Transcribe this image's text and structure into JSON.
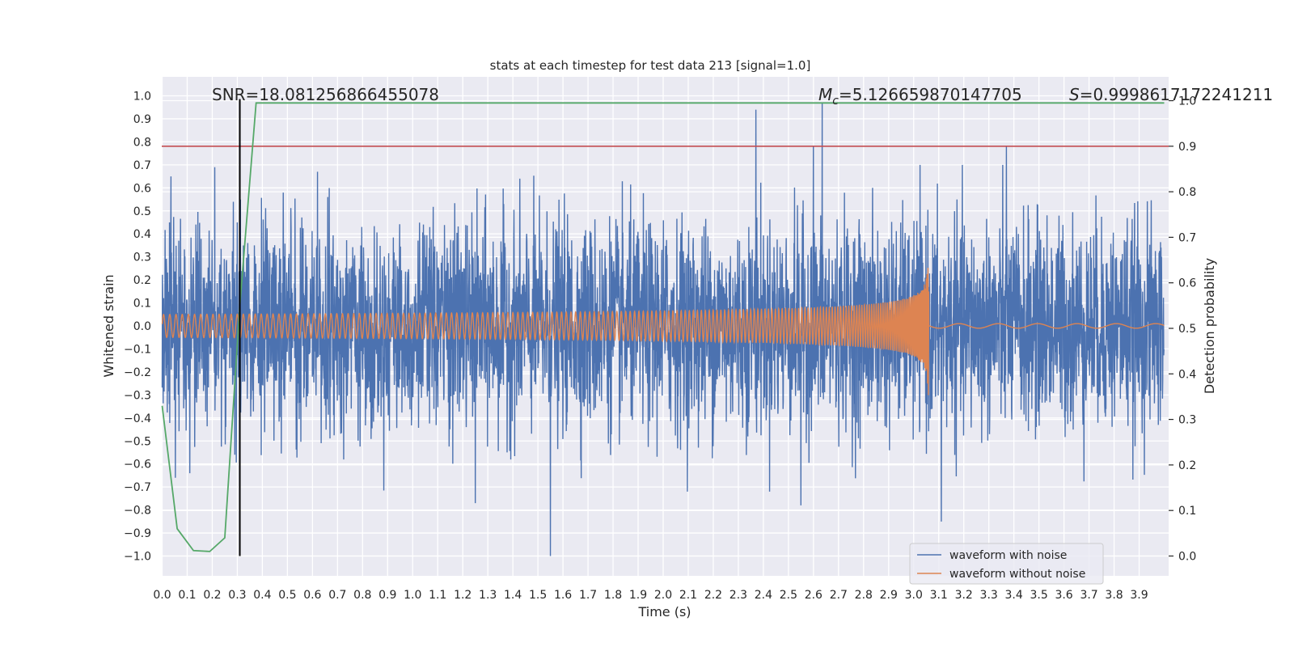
{
  "chart_data": {
    "type": "line",
    "title": "stats at each timestep for test data 213 [signal=1.0]",
    "xlabel": "Time (s)",
    "ylabel": "Whitened strain",
    "y2label": "Detection probability",
    "xlim": [
      0.0,
      4.0
    ],
    "ylim": [
      -1.1,
      1.1
    ],
    "y2lim": [
      -0.05,
      1.05
    ],
    "x_ticks": [
      "0.0",
      "0.1",
      "0.2",
      "0.3",
      "0.4",
      "0.5",
      "0.6",
      "0.7",
      "0.8",
      "0.9",
      "1.0",
      "1.1",
      "1.2",
      "1.3",
      "1.4",
      "1.5",
      "1.6",
      "1.7",
      "1.8",
      "1.9",
      "2.0",
      "2.1",
      "2.2",
      "2.3",
      "2.4",
      "2.5",
      "2.6",
      "2.7",
      "2.8",
      "2.9",
      "3.0",
      "3.1",
      "3.2",
      "3.3",
      "3.4",
      "3.5",
      "3.6",
      "3.7",
      "3.8",
      "3.9"
    ],
    "y_ticks": [
      "1.0",
      "0.9",
      "0.8",
      "0.7",
      "0.6",
      "0.5",
      "0.4",
      "0.3",
      "0.2",
      "0.1",
      "0.0",
      "−0.1",
      "−0.2",
      "−0.3",
      "−0.4",
      "−0.5",
      "−0.6",
      "−0.7",
      "−0.8",
      "−0.9",
      "−1.0"
    ],
    "y2_ticks": [
      "1.0",
      "0.9",
      "0.8",
      "0.7",
      "0.6",
      "0.5",
      "0.4",
      "0.3",
      "0.2",
      "0.1",
      "0.0"
    ],
    "grid": true,
    "annotations": {
      "snr": "SNR=18.081256866455078",
      "mc_symbol": "M",
      "mc_sub": "c",
      "mc_value": "=5.126659870147705",
      "s_symbol": "S",
      "s_value": "=0.9998617172241211"
    },
    "series": [
      {
        "name": "waveform with noise",
        "color": "#4c72b0",
        "description": "whitened noisy strain, approx. Gaussian, std ~0.22, peaks between -1.0 and 0.97",
        "std": 0.22,
        "spikes": [
          [
            2.37,
            0.94
          ],
          [
            2.635,
            0.97
          ],
          [
            1.55,
            -1.0
          ],
          [
            3.37,
            0.78
          ],
          [
            0.21,
            0.69
          ],
          [
            2.6,
            0.78
          ],
          [
            3.11,
            -0.85
          ],
          [
            2.55,
            -0.78
          ],
          [
            1.25,
            -0.77
          ],
          [
            0.62,
            0.67
          ],
          [
            0.3,
            0.45
          ]
        ]
      },
      {
        "name": "waveform without noise",
        "color": "#dd8452",
        "description": "chirp signal, amplitude growing from 0.05 to 0.38, merger at 3.06 s, flat after",
        "merger_time": 3.06,
        "amp_start": 0.05,
        "amp_peak": 0.38,
        "freq_start_hz": 40,
        "freq_end_hz": 280
      },
      {
        "name": "detection probability",
        "color": "#55a868",
        "axis": "right",
        "x": [
          0.0,
          0.06,
          0.125,
          0.19,
          0.25,
          0.31,
          0.375,
          4.0
        ],
        "y": [
          0.33,
          0.06,
          0.012,
          0.01,
          0.04,
          0.55,
          0.995,
          0.995
        ]
      }
    ],
    "threshold": {
      "axis": "right",
      "value": 0.9,
      "color": "#c44e52"
    },
    "vline": {
      "x": 0.31,
      "color": "#000000",
      "ymin": -1.0,
      "ymax": 1.0
    },
    "legend": {
      "location": "lower-right",
      "entries": [
        {
          "label": "waveform with noise",
          "color": "#4c72b0"
        },
        {
          "label": "waveform without noise",
          "color": "#dd8452"
        }
      ]
    }
  }
}
